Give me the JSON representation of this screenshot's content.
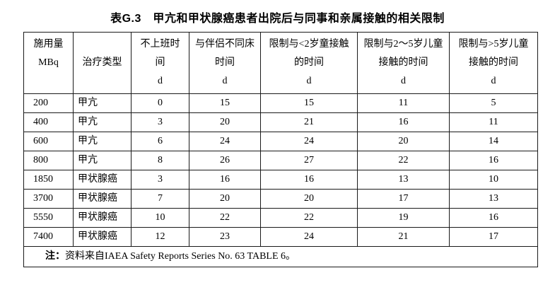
{
  "title": "表G.3　甲亢和甲状腺癌患者出院后与同事和亲属接触的相关限制",
  "table": {
    "columns": [
      {
        "id": "administered-activity",
        "lines": [
          "施用量",
          "MBq",
          ""
        ]
      },
      {
        "id": "treatment-type",
        "lines": [
          "",
          "治疗类型",
          ""
        ]
      },
      {
        "id": "days-off-work",
        "lines": [
          "不上班时",
          "间",
          "d"
        ]
      },
      {
        "id": "sleep-apart-partner",
        "lines": [
          "与伴侣不同床",
          "时间",
          "d"
        ]
      },
      {
        "id": "restrict-child-under2",
        "lines": [
          "限制与<2岁童接触",
          "的时间",
          "d"
        ]
      },
      {
        "id": "restrict-child-2to5",
        "lines": [
          "限制与2～5岁儿童",
          "接触的时间",
          "d"
        ]
      },
      {
        "id": "restrict-child-over5",
        "lines": [
          "限制与>5岁儿童",
          "接触的时间",
          "d"
        ]
      }
    ],
    "rows": [
      [
        "200",
        "甲亢",
        "0",
        "15",
        "15",
        "11",
        "5"
      ],
      [
        "400",
        "甲亢",
        "3",
        "20",
        "21",
        "16",
        "11"
      ],
      [
        "600",
        "甲亢",
        "6",
        "24",
        "24",
        "20",
        "14"
      ],
      [
        "800",
        "甲亢",
        "8",
        "26",
        "27",
        "22",
        "16"
      ],
      [
        "1850",
        "甲状腺癌",
        "3",
        "16",
        "16",
        "13",
        "10"
      ],
      [
        "3700",
        "甲状腺癌",
        "7",
        "20",
        "20",
        "17",
        "13"
      ],
      [
        "5550",
        "甲状腺癌",
        "10",
        "22",
        "22",
        "19",
        "16"
      ],
      [
        "7400",
        "甲状腺癌",
        "12",
        "23",
        "24",
        "21",
        "17"
      ]
    ],
    "note_label": "注：",
    "note_text": "资料来自IAEA Safety Reports Series No. 63 TABLE 6。"
  },
  "colors": {
    "text": "#000000",
    "border": "#1a1a1a",
    "background": "#ffffff"
  }
}
